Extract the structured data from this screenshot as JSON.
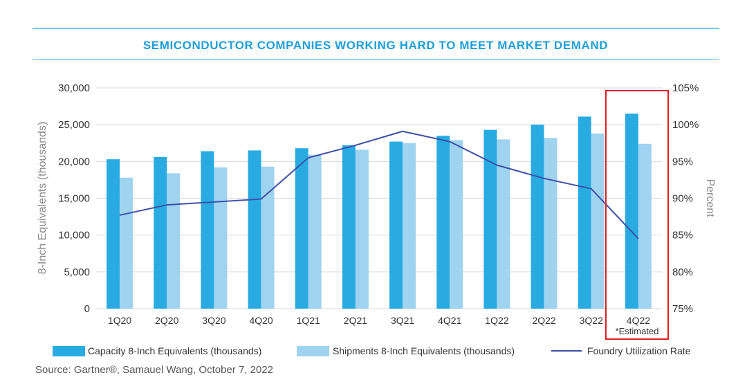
{
  "colors": {
    "rule": "#4bb3e0",
    "title": "#1f9ed8",
    "capacity": "#29abe2",
    "shipments": "#9fd3f0",
    "line": "#3b4fa8",
    "grid": "#d9d9d9",
    "axis_text": "#333333",
    "axis_label": "#888888",
    "highlight": "#e02020"
  },
  "source": "Source: Gartner®, Samauel Wang, October 7, 2022",
  "annotation": "*Estimated",
  "chart_data": {
    "type": "bar",
    "title": "SEMICONDUCTOR COMPANIES WORKING HARD TO MEET MARKET DEMAND",
    "categories": [
      "1Q20",
      "2Q20",
      "3Q20",
      "4Q20",
      "1Q21",
      "2Q21",
      "3Q21",
      "4Q21",
      "1Q22",
      "2Q22",
      "3Q22",
      "4Q22"
    ],
    "series": [
      {
        "name": "Capacity 8-Inch Equivalents (thousands)",
        "axis": "left",
        "kind": "bar",
        "values": [
          20300,
          20600,
          21400,
          21500,
          21800,
          22200,
          22700,
          23500,
          24300,
          25000,
          26100,
          26500
        ]
      },
      {
        "name": "Shipments 8-Inch Equivalents (thousands)",
        "axis": "left",
        "kind": "bar",
        "values": [
          17800,
          18400,
          19200,
          19300,
          20900,
          21600,
          22500,
          22900,
          23000,
          23200,
          23800,
          22400
        ]
      },
      {
        "name": "Foundry Utilization Rate",
        "axis": "right",
        "kind": "line",
        "values": [
          87.7,
          89.1,
          89.5,
          89.9,
          95.5,
          97.2,
          99.1,
          97.7,
          94.5,
          92.7,
          91.3,
          84.5
        ]
      }
    ],
    "ylabel": "8-Inch Equivalents (thousands)",
    "y2label": "Percent",
    "ylim": [
      0,
      30000
    ],
    "y2lim": [
      75,
      105
    ],
    "yticks": [
      "0",
      "5,000",
      "10,000",
      "15,000",
      "20,000",
      "25,000",
      "30,000"
    ],
    "y2ticks": [
      "75%",
      "80%",
      "85%",
      "90%",
      "95%",
      "100%",
      "105%"
    ],
    "grid": true,
    "legend_position": "bottom",
    "highlighted_category": "4Q22"
  }
}
